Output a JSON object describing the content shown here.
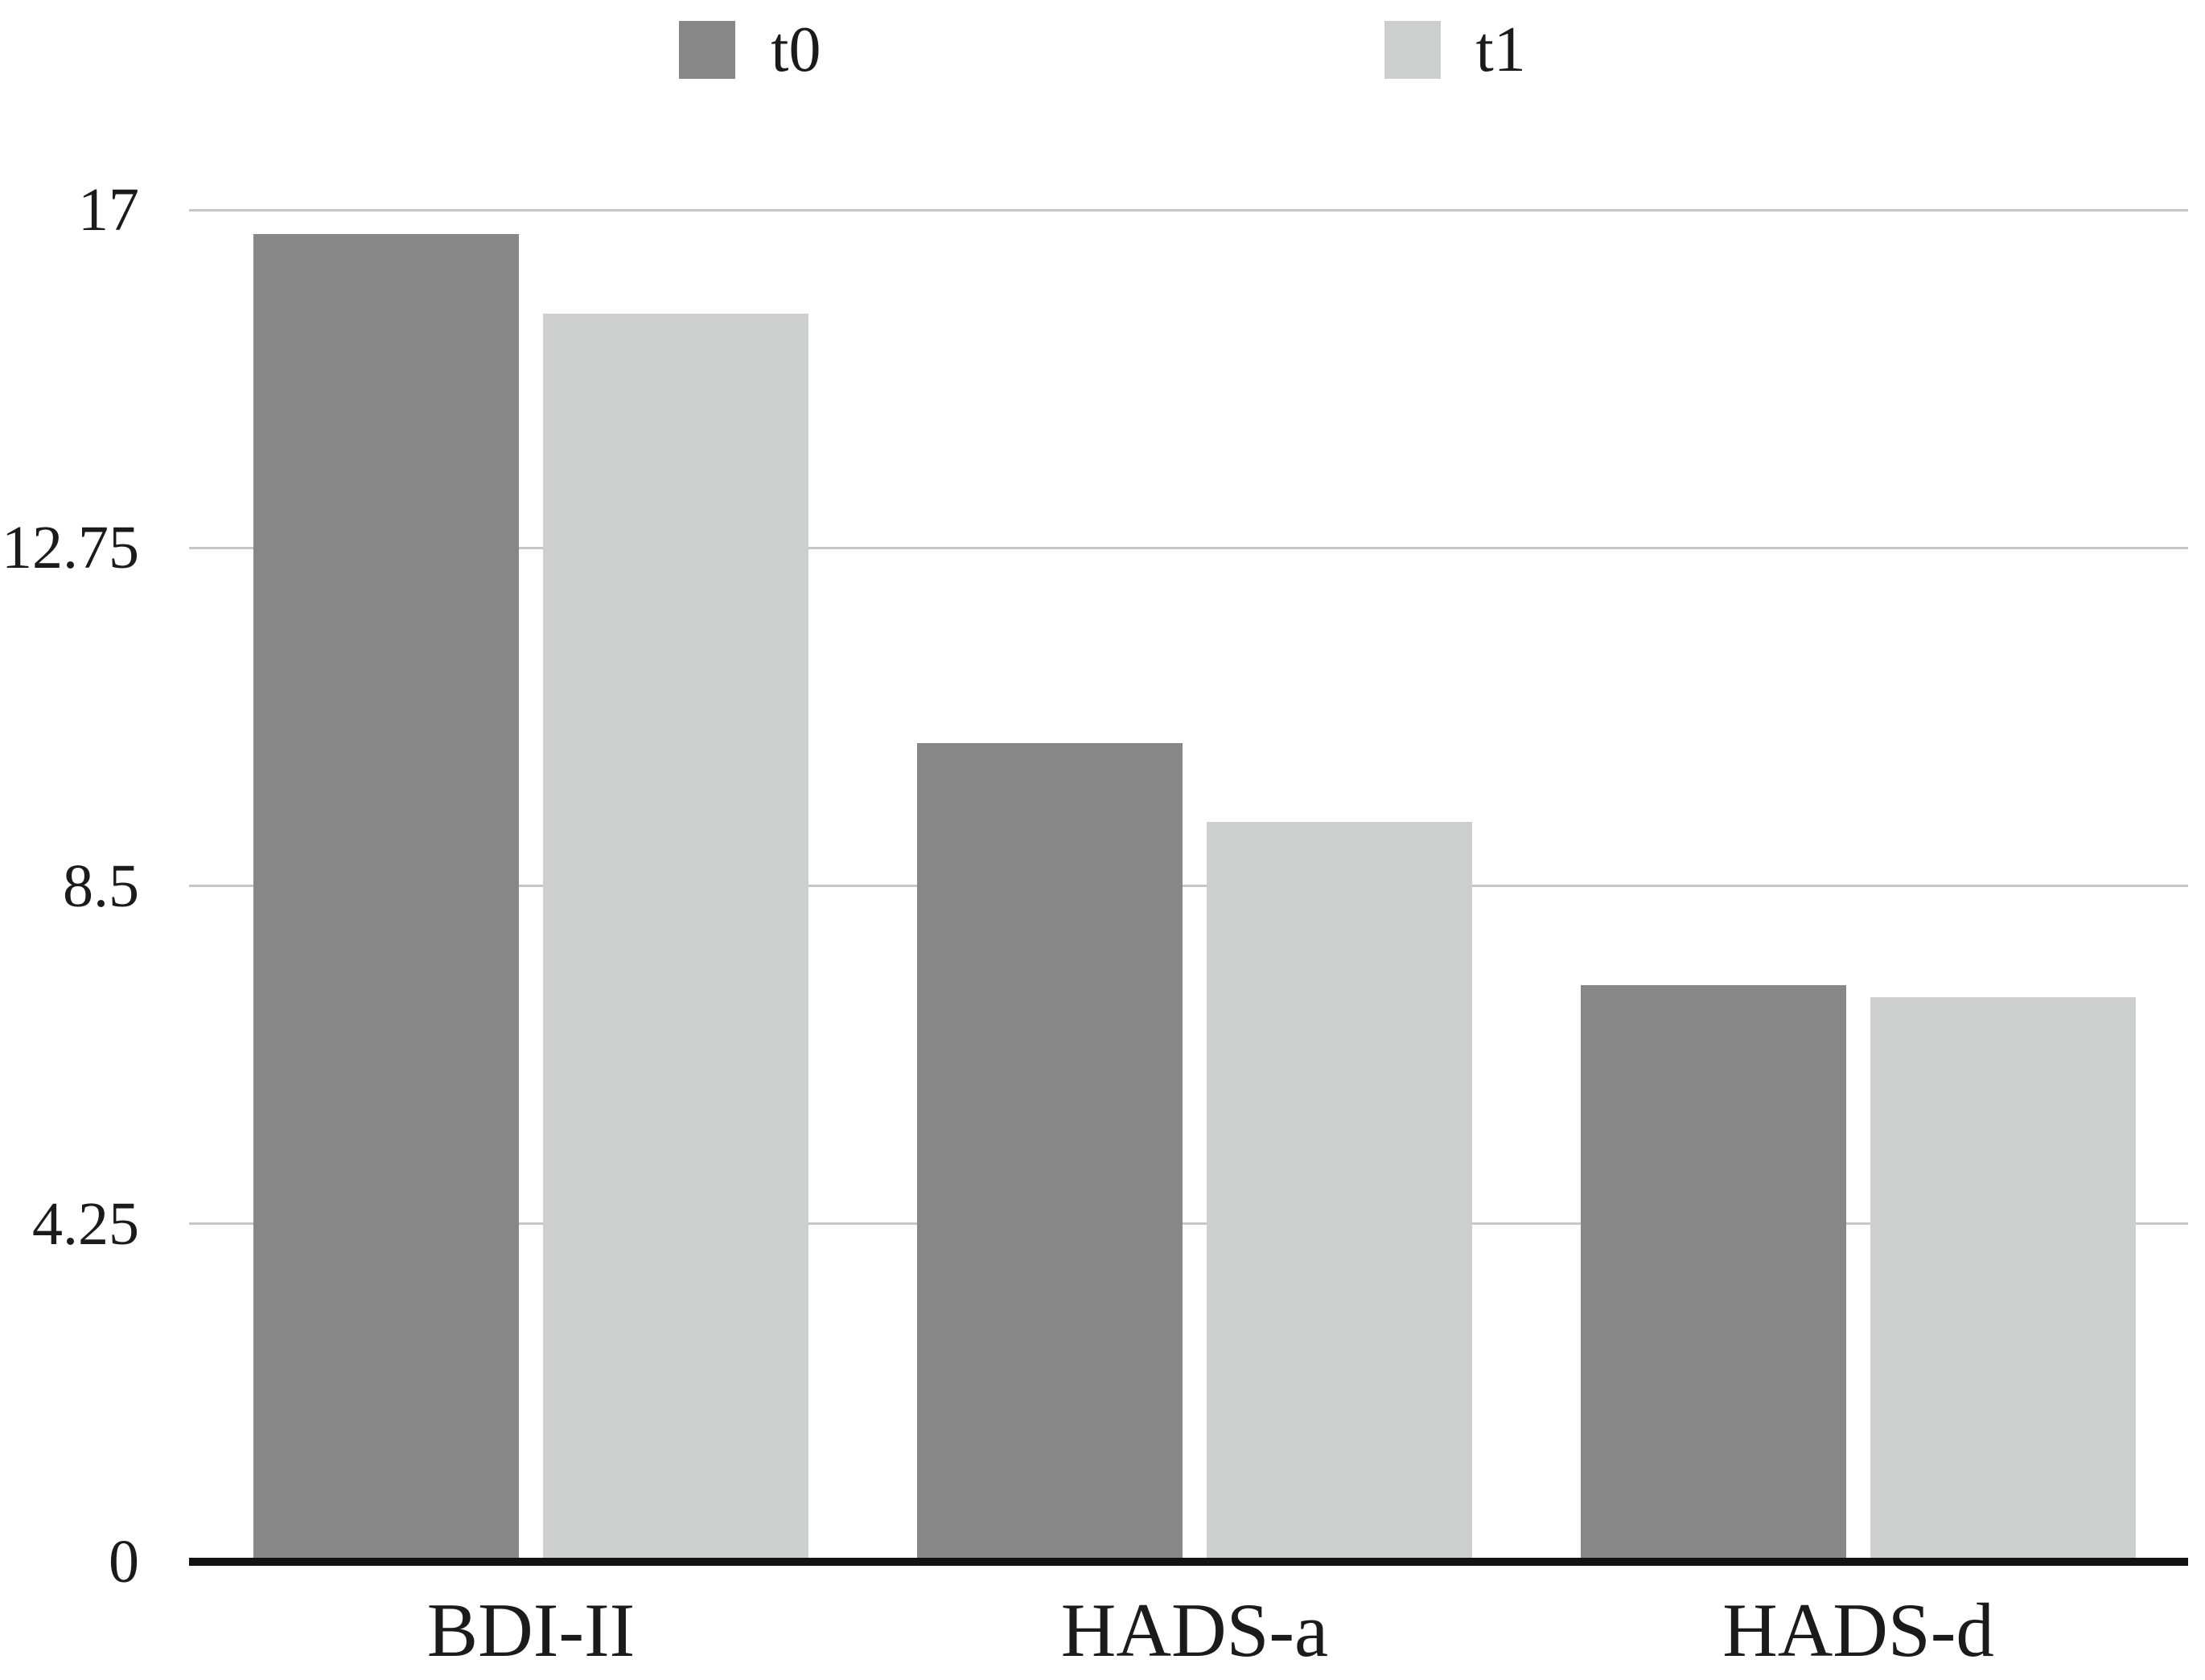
{
  "chart_data": {
    "type": "bar",
    "title": "",
    "categories": [
      "BDI-II",
      "HADS-a",
      "HADS-d"
    ],
    "series": [
      {
        "name": "t0",
        "color": "#878787",
        "values": [
          16.7,
          10.3,
          7.25
        ]
      },
      {
        "name": "t1",
        "color": "#cccfcd",
        "values": [
          15.7,
          9.3,
          7.1
        ]
      }
    ],
    "xlabel": "",
    "ylabel": "",
    "ylim": [
      0,
      17
    ],
    "yticks": [
      0,
      4.25,
      8.5,
      12.75,
      17
    ],
    "grid": true,
    "legend_position": "top-center",
    "colors": {
      "gridline": "#c7c7c7",
      "axis_line": "#121212",
      "text": "#1b1b1b",
      "background": "#ffffff"
    }
  }
}
